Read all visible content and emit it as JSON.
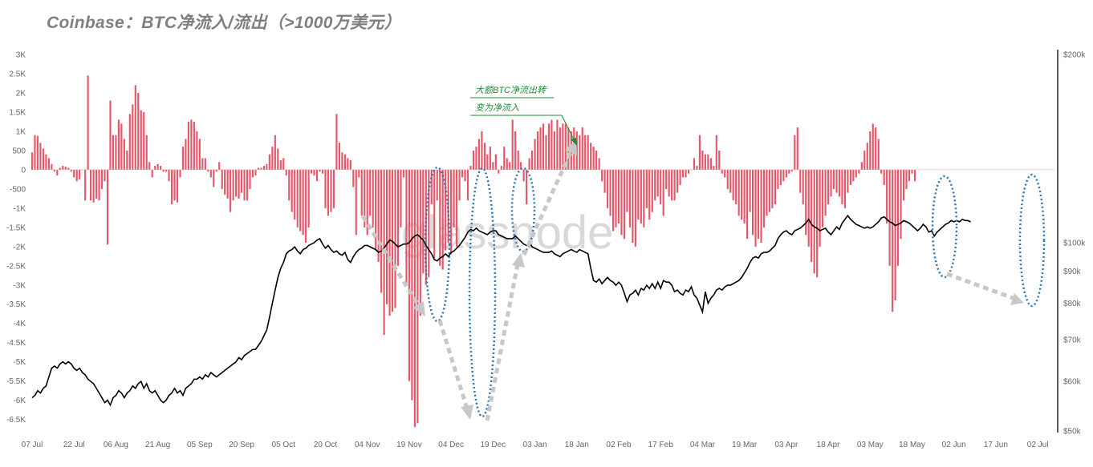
{
  "title": "Coinbase：BTC净流入/流出（>1000万美元）",
  "watermark": "glassnode",
  "annotation": {
    "line1": "大额BTC净流出转",
    "line2": "变为净流入"
  },
  "colors": {
    "bar": "#e4586a",
    "price_line": "#000000",
    "ellipse": "#2e75b6",
    "arrow": "#c8c8c8",
    "annotation": "#1f8a3b"
  },
  "chart_data": {
    "type": "bar",
    "title": "Coinbase：BTC净流入/流出（>1000万美元）",
    "left_axis": {
      "min": -6800,
      "max": 3000,
      "ticks": [
        3000,
        2500,
        2000,
        1500,
        1000,
        500,
        0,
        -500,
        -1000,
        -1500,
        -2000,
        -2500,
        -3000,
        -3500,
        -4000,
        -4500,
        -5000,
        -5500,
        -6000,
        -6500
      ],
      "tick_labels": [
        "3K",
        "2.5K",
        "2K",
        "1.5K",
        "1K",
        "500",
        "0",
        "-500",
        "-1K",
        "-1.5K",
        "-2K",
        "-2.5K",
        "-3K",
        "-3.5K",
        "-4K",
        "-4.5K",
        "-5K",
        "-5.5K",
        "-6K",
        "-6.5K"
      ]
    },
    "right_axis": {
      "scale": "log",
      "min": 50000,
      "max": 200000,
      "ticks": [
        200000,
        100000,
        90000,
        80000,
        70000,
        60000,
        50000
      ],
      "tick_labels": [
        "$200k",
        "$100k",
        "$90k",
        "$80k",
        "$70k",
        "$60k",
        "$50k"
      ]
    },
    "x_tick_labels": [
      "07 Jul",
      "22 Jul",
      "06 Aug",
      "21 Aug",
      "05 Sep",
      "20 Sep",
      "05 Oct",
      "20 Oct",
      "04 Nov",
      "19 Nov",
      "04 Dec",
      "19 Dec",
      "03 Jan",
      "18 Jan",
      "02 Feb",
      "17 Feb",
      "04 Mar",
      "19 Mar",
      "03 Apr",
      "18 Apr",
      "03 May",
      "18 May",
      "02 Jun",
      "17 Jun",
      "02 Jul"
    ],
    "x_start_day": 0,
    "x_end_day": 366,
    "series": [
      {
        "type": "bar",
        "values": [
          450,
          900,
          880,
          700,
          550,
          400,
          300,
          150,
          -50,
          -150,
          50,
          100,
          80,
          50,
          -50,
          -200,
          -300,
          -250,
          0,
          -800,
          2450,
          -800,
          -850,
          -750,
          -800,
          -500,
          -300,
          -1950,
          1800,
          900,
          900,
          1300,
          1200,
          800,
          500,
          1450,
          1700,
          2200,
          2000,
          1550,
          1500,
          900,
          200,
          -200,
          100,
          150,
          100,
          -50,
          -50,
          -300,
          -900,
          -800,
          -850,
          -200,
          600,
          800,
          1250,
          1300,
          1250,
          1000,
          800,
          300,
          300,
          -50,
          -200,
          -450,
          -50,
          200,
          -500,
          -650,
          -750,
          -1100,
          -800,
          -700,
          -750,
          -600,
          -800,
          -800,
          -500,
          -200,
          -150,
          50,
          50,
          100,
          150,
          400,
          600,
          900,
          550,
          250,
          300,
          -150,
          -800,
          -1100,
          -1300,
          -1500,
          -1600,
          -1700,
          -1900,
          -1500,
          -100,
          -150,
          -300,
          -50,
          -100,
          -1000,
          -1200,
          -1100,
          -1000,
          1450,
          700,
          450,
          400,
          300,
          250,
          -450,
          -1700,
          -200,
          -1200,
          -1500,
          -1700,
          -1200,
          -1500,
          -2100,
          -2400,
          -3200,
          -4300,
          -3500,
          -3800,
          -3700,
          -3600,
          -2500,
          -1500,
          -200,
          -3000,
          -5500,
          -6000,
          -6700,
          -6600,
          -3800,
          -2700,
          -3000,
          -2800,
          -900,
          -2300,
          -800,
          -2500,
          -2600,
          -2100,
          -1900,
          -2200,
          -1500,
          -2000,
          -800,
          -200,
          -300,
          -800,
          100,
          500,
          600,
          800,
          1000,
          700,
          400,
          600,
          200,
          400,
          -100,
          100,
          600,
          300,
          200,
          1300,
          1000,
          500,
          200,
          -300,
          -900,
          300,
          500,
          800,
          1000,
          1100,
          1200,
          900,
          1200,
          1300,
          1000,
          1300,
          1100,
          1200,
          1200,
          1100,
          1000,
          1100,
          1000,
          900,
          1100,
          900,
          900,
          700,
          600,
          500,
          300,
          -300,
          -600,
          -1000,
          -1200,
          -1600,
          -1500,
          -1400,
          -1700,
          -1800,
          -1100,
          -1500,
          -1900,
          -2000,
          -1300,
          -1400,
          -1500,
          -1000,
          -1300,
          -1100,
          -800,
          -700,
          -900,
          -1200,
          -500,
          -700,
          -800,
          -800,
          -600,
          -400,
          -200,
          -200,
          -100,
          0,
          300,
          100,
          900,
          500,
          400,
          400,
          300,
          100,
          900,
          500,
          -100,
          -200,
          -500,
          -600,
          -800,
          -900,
          -1200,
          -1300,
          -1400,
          -1800,
          -1100,
          -1700,
          -2000,
          -1800,
          -1900,
          -1500,
          -1200,
          -1100,
          -1000,
          -900,
          -500,
          -400,
          -300,
          -200,
          -100,
          -50,
          900,
          1100,
          -600,
          -900,
          -1700,
          -2000,
          -2400,
          -2700,
          -2800,
          -2000,
          -1500,
          -1200,
          -900,
          -700,
          -500,
          -600,
          -700,
          -900,
          -1000,
          -600,
          -400,
          -300,
          -200,
          -100,
          200,
          500,
          700,
          1000,
          1200,
          1100,
          800,
          -100,
          -400,
          -1400,
          -2500,
          -3700,
          -3400,
          -2500,
          -1800,
          -800,
          -500,
          -300,
          -100,
          -300
        ]
      },
      {
        "type": "line",
        "values": [
          56500,
          57000,
          58000,
          57500,
          58500,
          59000,
          61000,
          63000,
          63500,
          63000,
          64000,
          64500,
          64000,
          64500,
          64000,
          63000,
          62500,
          63000,
          62000,
          61500,
          60500,
          60000,
          59500,
          58500,
          57500,
          56500,
          55500,
          56000,
          55000,
          56500,
          57000,
          58000,
          57500,
          56500,
          57500,
          58000,
          59000,
          58500,
          59500,
          60000,
          58500,
          59500,
          58000,
          57500,
          58000,
          57000,
          56000,
          55500,
          56000,
          57000,
          57500,
          58500,
          57500,
          58000,
          57000,
          58500,
          59000,
          59500,
          60500,
          60500,
          61000,
          60500,
          61500,
          61000,
          62000,
          61500,
          61000,
          61500,
          62000,
          62500,
          63000,
          63500,
          64000,
          64500,
          65500,
          65000,
          66000,
          66500,
          67000,
          67500,
          67500,
          68500,
          69500,
          71000,
          72500,
          76000,
          80000,
          84000,
          88000,
          91000,
          93000,
          96000,
          97000,
          97500,
          98500,
          97000,
          96000,
          97500,
          98000,
          99000,
          99500,
          100000,
          101000,
          101500,
          99500,
          98000,
          99000,
          97500,
          96500,
          97000,
          96000,
          95500,
          96500,
          94000,
          93000,
          95000,
          96500,
          97500,
          98000,
          99000,
          99000,
          98500,
          98000,
          97500,
          96500,
          97000,
          98000,
          99500,
          101000,
          100500,
          99500,
          98500,
          99000,
          99500,
          99500,
          100000,
          101500,
          102500,
          103000,
          102000,
          101000,
          99000,
          97500,
          96000,
          94000,
          93500,
          94500,
          95000,
          96000,
          95000,
          96500,
          97000,
          98000,
          99000,
          100500,
          102000,
          104000,
          105000,
          104500,
          105500,
          104500,
          104000,
          103500,
          103000,
          104000,
          104500,
          104500,
          103000,
          102500,
          102000,
          101500,
          101500,
          101500,
          102500,
          101500,
          100500,
          99500,
          99000,
          100000,
          98500,
          98000,
          97500,
          97000,
          96500,
          96500,
          96500,
          97000,
          96000,
          95500,
          95000,
          96000,
          96500,
          97000,
          97500,
          97000,
          96500,
          97500,
          97000,
          96500,
          96000,
          91000,
          87000,
          86500,
          87500,
          86000,
          87000,
          88000,
          87000,
          86500,
          85500,
          86500,
          85500,
          83000,
          80500,
          82500,
          83000,
          84000,
          82500,
          84500,
          84000,
          85500,
          84500,
          86000,
          84500,
          86500,
          84500,
          87000,
          86500,
          86500,
          85500,
          83500,
          84000,
          83000,
          82500,
          84000,
          83500,
          85000,
          82500,
          81500,
          79500,
          77500,
          83500,
          80000,
          81500,
          82500,
          84000,
          84500,
          84000,
          85000,
          85500,
          85500,
          86000,
          86500,
          87000,
          88000,
          89500,
          91000,
          93000,
          94500,
          95000,
          94500,
          96000,
          96500,
          96500,
          97000,
          98000,
          99000,
          101500,
          103000,
          104000,
          104500,
          103500,
          103000,
          104500,
          105000,
          105500,
          106500,
          107500,
          109000,
          107000,
          106000,
          105500,
          104500,
          105000,
          105500,
          104000,
          103000,
          104500,
          106000,
          105000,
          107500,
          109000,
          110500,
          109000,
          108000,
          107000,
          106500,
          106000,
          105500,
          106000,
          105500,
          106000,
          107000,
          108000,
          109500,
          110000,
          109000,
          108000,
          107500,
          106500,
          107000,
          107500,
          108500,
          108000,
          107500,
          106500,
          105500,
          104500,
          105500,
          107000,
          106000,
          104000,
          104500,
          102500,
          104000,
          105000,
          106000,
          107000,
          107500,
          108500,
          108000,
          108500,
          108000,
          109000,
          108500,
          108500,
          108000
        ]
      }
    ]
  }
}
